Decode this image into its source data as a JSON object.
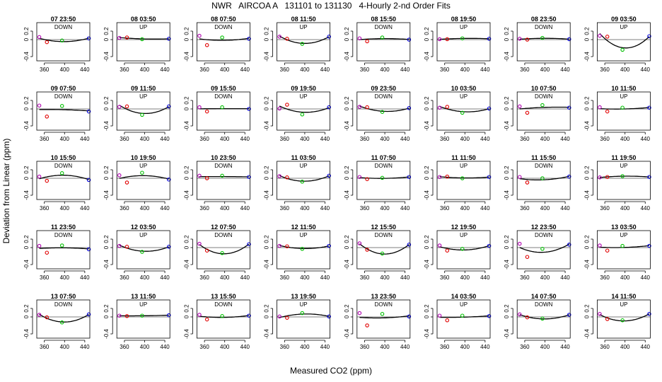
{
  "title": "NWR   AIRCOA A   131101 to 131130   4-Hourly 2-nd Order Fits",
  "xlabel": "Measured CO2 (ppm)",
  "ylabel": "Deviation from Linear (ppm)",
  "colors": {
    "pt1": "#b000b0",
    "pt2": "#e00000",
    "pt3": "#00c000",
    "pt4": "#0000e0",
    "curve": "#000000"
  },
  "chart_data": {
    "type": "scatter",
    "layout": "small-multiples 8 columns x 5 rows",
    "xlim": [
      345,
      450
    ],
    "ylim": [
      -0.5,
      0.4
    ],
    "x_ticks": [
      360,
      400,
      440
    ],
    "y_ticks": [
      -0.4,
      0,
      0.2
    ],
    "y_tick_labels": [
      "-0.4",
      "0",
      "0.2"
    ],
    "x_points": [
      350,
      365,
      395,
      448
    ],
    "panels": [
      {
        "time": "07 23:50",
        "dir": "DOWN",
        "y": [
          0.06,
          -0.06,
          -0.02,
          0.03
        ]
      },
      {
        "time": "08 03:50",
        "dir": "UP",
        "y": [
          0.04,
          0.05,
          0.01,
          0.02
        ]
      },
      {
        "time": "08 07:50",
        "dir": "DOWN",
        "y": [
          0.09,
          -0.13,
          0.05,
          0.02
        ]
      },
      {
        "time": "08 11:50",
        "dir": "UP",
        "y": [
          0.07,
          0.02,
          -0.1,
          0.07
        ]
      },
      {
        "time": "08 15:50",
        "dir": "DOWN",
        "y": [
          0.03,
          -0.04,
          0.05,
          0.0
        ]
      },
      {
        "time": "08 19:50",
        "dir": "UP",
        "y": [
          0.01,
          0.01,
          0.03,
          0.02
        ]
      },
      {
        "time": "08 23:50",
        "dir": "DOWN",
        "y": [
          0.02,
          0.0,
          0.04,
          0.01
        ]
      },
      {
        "time": "09 03:50",
        "dir": "UP",
        "y": [
          0.09,
          0.07,
          -0.24,
          0.08
        ]
      },
      {
        "time": "09 07:50",
        "dir": "DOWN",
        "y": [
          0.08,
          -0.18,
          0.07,
          -0.06
        ]
      },
      {
        "time": "09 11:50",
        "dir": "UP",
        "y": [
          0.05,
          0.06,
          -0.14,
          0.06
        ]
      },
      {
        "time": "09 15:50",
        "dir": "DOWN",
        "y": [
          0.04,
          -0.06,
          0.04,
          0.0
        ]
      },
      {
        "time": "09 19:50",
        "dir": "UP",
        "y": [
          0.01,
          0.1,
          -0.13,
          0.04
        ]
      },
      {
        "time": "09 23:50",
        "dir": "DOWN",
        "y": [
          0.05,
          0.04,
          -0.07,
          0.02
        ]
      },
      {
        "time": "10 03:50",
        "dir": "UP",
        "y": [
          0.03,
          0.05,
          -0.09,
          0.01
        ]
      },
      {
        "time": "10 07:50",
        "dir": "DOWN",
        "y": [
          0.06,
          -0.09,
          0.09,
          0.03
        ]
      },
      {
        "time": "10 11:50",
        "dir": "UP",
        "y": [
          0.04,
          -0.06,
          0.03,
          0.03
        ]
      },
      {
        "time": "10 15:50",
        "dir": "DOWN",
        "y": [
          0.04,
          -0.06,
          0.12,
          -0.04
        ]
      },
      {
        "time": "10 19:50",
        "dir": "UP",
        "y": [
          0.07,
          -0.1,
          0.13,
          -0.03
        ]
      },
      {
        "time": "10 23:50",
        "dir": "DOWN",
        "y": [
          0.06,
          0.0,
          0.06,
          0.03
        ]
      },
      {
        "time": "11 03:50",
        "dir": "UP",
        "y": [
          0.05,
          0.02,
          -0.08,
          0.06
        ]
      },
      {
        "time": "11 07:50",
        "dir": "DOWN",
        "y": [
          0.03,
          -0.02,
          0.01,
          0.03
        ]
      },
      {
        "time": "11 11:50",
        "dir": "UP",
        "y": [
          0.03,
          0.04,
          0.0,
          0.03
        ]
      },
      {
        "time": "11 15:50",
        "dir": "DOWN",
        "y": [
          0.03,
          -0.1,
          0.0,
          0.04
        ]
      },
      {
        "time": "11 19:50",
        "dir": "UP",
        "y": [
          0.02,
          0.03,
          0.05,
          0.03
        ]
      },
      {
        "time": "11 23:50",
        "dir": "DOWN",
        "y": [
          0.04,
          -0.12,
          0.05,
          -0.04
        ]
      },
      {
        "time": "12 03:50",
        "dir": "UP",
        "y": [
          0.04,
          0.02,
          -0.1,
          0.02
        ]
      },
      {
        "time": "12 07:50",
        "dir": "DOWN",
        "y": [
          0.09,
          -0.07,
          -0.13,
          0.08
        ]
      },
      {
        "time": "12 11:50",
        "dir": "UP",
        "y": [
          0.04,
          0.03,
          -0.03,
          0.04
        ]
      },
      {
        "time": "12 15:50",
        "dir": "DOWN",
        "y": [
          0.1,
          -0.05,
          -0.14,
          0.07
        ]
      },
      {
        "time": "12 19:50",
        "dir": "UP",
        "y": [
          0.05,
          -0.07,
          -0.03,
          0.04
        ]
      },
      {
        "time": "12 23:50",
        "dir": "DOWN",
        "y": [
          0.09,
          -0.22,
          -0.03,
          0.07
        ]
      },
      {
        "time": "13 03:50",
        "dir": "UP",
        "y": [
          0.05,
          -0.07,
          0.04,
          0.04
        ]
      },
      {
        "time": "13 07:50",
        "dir": "DOWN",
        "y": [
          0.05,
          -0.01,
          -0.13,
          0.06
        ]
      },
      {
        "time": "13 11:50",
        "dir": "UP",
        "y": [
          0.03,
          0.02,
          0.03,
          0.04
        ]
      },
      {
        "time": "13 15:50",
        "dir": "DOWN",
        "y": [
          0.05,
          -0.06,
          0.02,
          0.03
        ]
      },
      {
        "time": "13 19:50",
        "dir": "UP",
        "y": [
          0.01,
          -0.02,
          0.09,
          0.01
        ]
      },
      {
        "time": "13 23:50",
        "dir": "DOWN",
        "y": [
          0.09,
          -0.2,
          0.07,
          0.01
        ]
      },
      {
        "time": "14 03:50",
        "dir": "UP",
        "y": [
          0.03,
          -0.08,
          0.03,
          0.02
        ]
      },
      {
        "time": "14 07:50",
        "dir": "DOWN",
        "y": [
          0.06,
          -0.01,
          -0.04,
          0.05
        ]
      },
      {
        "time": "14 11:50",
        "dir": "UP",
        "y": [
          0.07,
          -0.05,
          -0.08,
          0.07
        ]
      }
    ]
  }
}
